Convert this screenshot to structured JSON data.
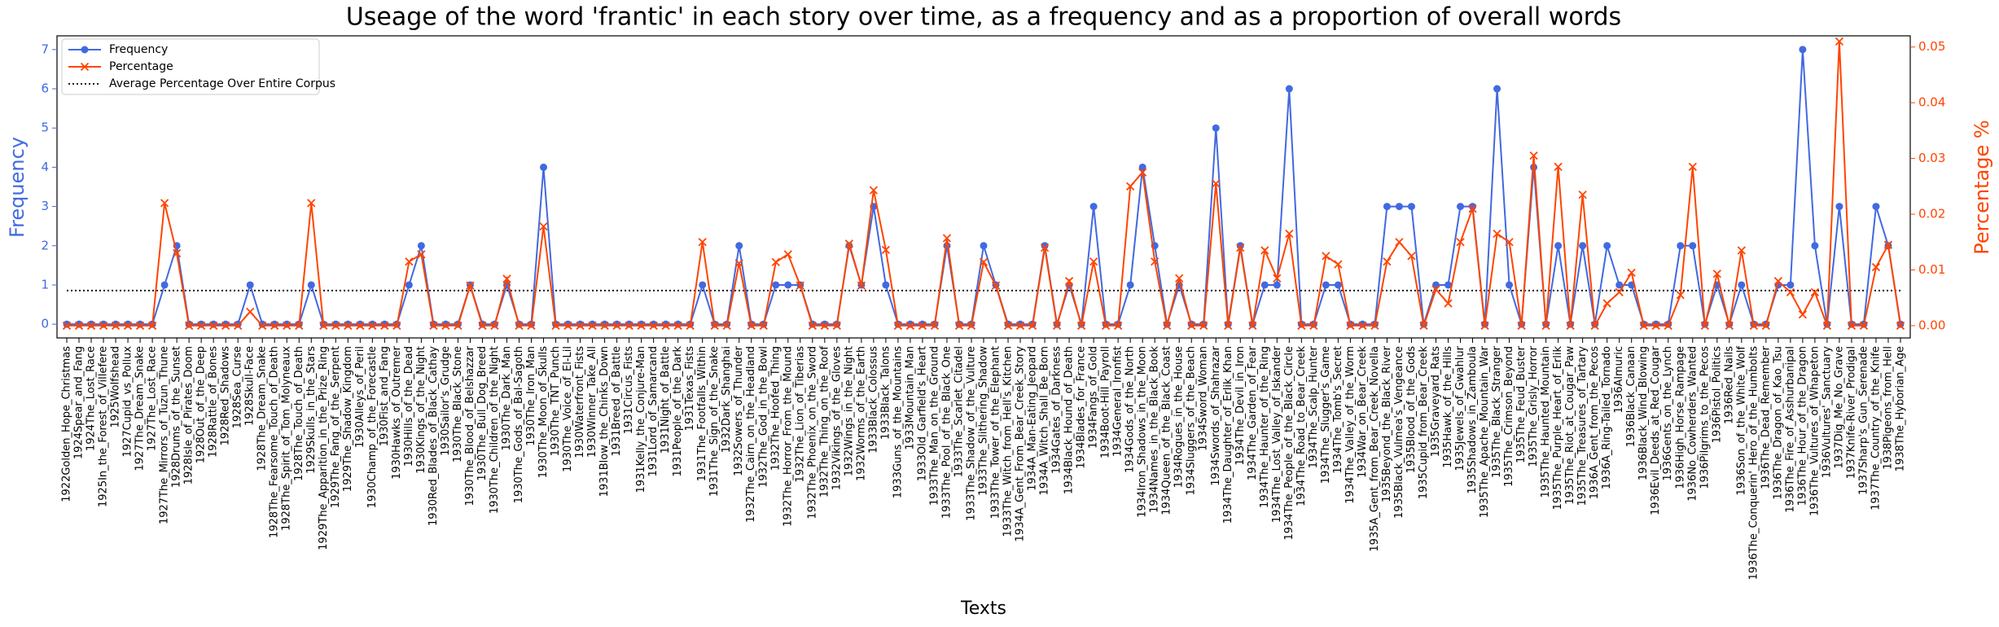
{
  "chart_data": {
    "type": "line",
    "title": "Useage of the word 'frantic' in each story over time, as a frequency and as a proportion of overall words",
    "xlabel": "Texts",
    "ylabel": "Frequency",
    "y2label": "Percentage %",
    "categories": [
      "1922Golden_Hope_Christmas",
      "1924Spear_and_Fang",
      "1924The_Lost_Race",
      "1925In_the_Forest_of_Villefere",
      "1925Wolfshead",
      "1927Cupid_vs_Pollux",
      "1927The_Dream_Snake",
      "1927The_Lost_Race",
      "1927The_Mirrors_of_Tuzun_Thune",
      "1928Drums_of_the_Sunset",
      "1928Isle_of_Pirates_Doom",
      "1928Out_of_the_Deep",
      "1928Rattle_of_Bones",
      "1928Red_Shadows",
      "1928Sea_Curse",
      "1928Skull-Face",
      "1928The_Dream_Snake",
      "1928The_Fearsome_Touch_of_Death",
      "1928The_Spirit_of_Tom_Molyneaux",
      "1928The_Touch_of_Death",
      "1929Skulls_in_the_Stars",
      "1929The_Apparition_in_the_Prize_Ring",
      "1929The_Fang_of_the_Serpent",
      "1929The_Shadow_Kingdom",
      "1930Alleys_of_Peril",
      "1930Champ_of_the_Forecastle",
      "1930Fist_and_Fang",
      "1930Hawks_of_Outremer",
      "1930Hills_of_the_Dead",
      "1930Kings_of_the_Night",
      "1930Red_Blades_of_Black_Cathay",
      "1930Sailor's_Grudge",
      "1930The_Black_Stone",
      "1930The_Blood_of_Belshazzar",
      "1930The_Bull_Dog_Breed",
      "1930The_Children_of_the_Night",
      "1930The_Dark_Man",
      "1930The_Gods_of_Bal-Sagoth",
      "1930The_Iron_Man",
      "1930The_Moon_of_Skulls",
      "1930The_TNT_Punch",
      "1930The_Voice_of_El-Lil",
      "1930Waterfront_Fists",
      "1930Winner_Take_All",
      "1931Blow_the_Chinks_Down",
      "1931Breed_of_Battle",
      "1931Circus_Fists",
      "1931Kelly_the_Conjure-Man",
      "1931Lord_of_Samarcand",
      "1931Night_of_Battle",
      "1931People_of_the_Dark",
      "1931Texas_Fists",
      "1931The_Footfalls_Within",
      "1931The_Sign_of_the_Snake",
      "1932Dark_Shanghai",
      "1932Sowers_of_Thunder",
      "1932The_Cairn_on_the_Headland",
      "1932The_God_in_the_Bowl",
      "1932The_Hoofed_Thing",
      "1932The_Horror_From_the_Mound",
      "1932The_Lion_of_Tiberias",
      "1932The_Phoenix_on_the_Sword",
      "1932The_Thing_on_the_Roof",
      "1932Vikings_of_the_Gloves",
      "1932Wings_in_the_Night",
      "1932Worms_of_the_Earth",
      "1933Black_Colossus",
      "1933Black_Talons",
      "1933Guns_of_the_Mountains",
      "1933Mountain_Man",
      "1933Old_Garfield's_Heart",
      "1933The_Man_on_the_Ground",
      "1933The_Pool_of_the_Black_One",
      "1933The_Scarlet_Citadel",
      "1933The_Shadow_of_the_Vulture",
      "1933The_Slithering_Shadow",
      "1933The_Tower_of_the_Elephant",
      "1933The_Witch_from_Hell's_Kitchen",
      "1934A_Gent_From_Bear_Creek_Story",
      "1934A_Man-Eating_Jeopard",
      "1934A_Witch_Shall_Be_Born",
      "1934Gates_of_Darkness",
      "1934Black_Hound_of_Death",
      "1934Blades_for_France",
      "1934Fangs_of_Gold",
      "1934Boot-Hill_Payroll",
      "1934General_Ironfist",
      "1934Gods_of_the_North",
      "1934Iron_Shadows_in_the_Moon",
      "1934Names_in_the_Black_Book",
      "1934Queen_of_the_Black_Coast",
      "1934Rogues_in_the_House",
      "1934Sluggers_of_the_Beach",
      "1934Sword_Woman",
      "1934Swords_of_Shahrazar",
      "1934The_Daughter_of_Erlik_Khan",
      "1934The_Devil_in_Iron",
      "1934The_Garden_of_Fear",
      "1934The_Haunter_of_the_Ring",
      "1934The_Lost_Valley_of_Iskander",
      "1934The_People_of_the_Black_Circle",
      "1934The_Road_to_Bear_Creek",
      "1934The_Scalp_Hunter",
      "1934The_Slugger's_Game",
      "1934The_Tomb's_Secret",
      "1934The_Valley_of_the_Worm",
      "1934War_on_Bear_Creek",
      "1935A_Gent_from_Bear_Creek_Novella",
      "1935Beyond_the_Black_River",
      "1935Black_Vulmea's_Vengeance",
      "1935Blood_of_the_Gods",
      "1935Cupid_from_Bear_Creek",
      "1935Graveyard_Rats",
      "1935Hawk_of_the_Hills",
      "1935Jewels_of_Gwahlur",
      "1935Shadows_in_Zamboula",
      "1935The_Apache_Mountain_War",
      "1935The_Black_Stranger",
      "1935The_Crimson_Beyond",
      "1935The_Feud_Buster",
      "1935The_Grisly_Horror",
      "1935The_Haunted_Mountain",
      "1935The_Purple_Heart_of_Erlik",
      "1935The_Riot_at_Cougar_Paw",
      "1935The_Treasures_of_Tartary",
      "1936A_Gent_from_the_Pecos",
      "1936A_Ring-Tailed_Tornado",
      "1936Almuric",
      "1936Black_Canaan",
      "1936Black_Wind_Blowing",
      "1936Evil_Deeds_at_Red_Cougar",
      "1936Gents_on_the_Lynch",
      "1936High_Horse_Rampage",
      "1936No_Cowherders_Wanted",
      "1936Pilgrims_to_the_Pecos",
      "1936Pistol_Politics",
      "1936Red_Nails",
      "1936Son_of_the_White_Wolf",
      "1936The_Conquerin'_Hero_of_the_Humbolts",
      "1936The_Dead_Remember",
      "1936The_Dragon_of_Kao_Tsu",
      "1936The_Fire_of_Asshurbanipal",
      "1936The_Hour_of_the_Dragon",
      "1936The_Vultures_of_Whapeton",
      "1936Vultures'_Sanctuary",
      "1937Dig_Me_No_Grave",
      "1937Knife-River_Prodigal",
      "1937Sharp's_Gun_Serenade",
      "1937The_Country_of_the_Knife",
      "1938Pigeons_from_Hell",
      "1938The_Hyborian_Age"
    ],
    "series": [
      {
        "name": "Frequency",
        "color": "#4169e1",
        "axis": "y",
        "marker": "o",
        "values": [
          0,
          0,
          0,
          0,
          0,
          0,
          0,
          0,
          1,
          2,
          0,
          0,
          0,
          0,
          0,
          1,
          0,
          0,
          0,
          0,
          1,
          0,
          0,
          0,
          0,
          0,
          0,
          0,
          1,
          2,
          0,
          0,
          0,
          1,
          0,
          0,
          1,
          0,
          0,
          4,
          0,
          0,
          0,
          0,
          0,
          0,
          0,
          0,
          0,
          0,
          0,
          0,
          1,
          0,
          0,
          2,
          0,
          0,
          1,
          1,
          1,
          0,
          0,
          0,
          2,
          1,
          3,
          1,
          0,
          0,
          0,
          0,
          2,
          0,
          0,
          2,
          1,
          0,
          0,
          0,
          2,
          0,
          1,
          0,
          3,
          0,
          0,
          1,
          4,
          2,
          0,
          1,
          0,
          0,
          5,
          0,
          2,
          0,
          1,
          1,
          6,
          0,
          0,
          1,
          1,
          0,
          0,
          0,
          3,
          3,
          3,
          0,
          1,
          1,
          3,
          3,
          0,
          6,
          1,
          0,
          4,
          0,
          2,
          0,
          2,
          0,
          2,
          1,
          1,
          0,
          0,
          0,
          2,
          2,
          0,
          1,
          0,
          1,
          0,
          0,
          1,
          1,
          7,
          2,
          0,
          3,
          0,
          0,
          3,
          2,
          0
        ]
      },
      {
        "name": "Percentage",
        "color": "#ff4500",
        "axis": "y2",
        "marker": "x",
        "values": [
          0,
          0,
          0,
          0,
          0,
          0,
          0,
          0,
          0.022,
          0.013,
          0,
          0,
          0,
          0,
          0,
          0.0025,
          0,
          0,
          0,
          0,
          0.022,
          0,
          0,
          0,
          0,
          0,
          0,
          0,
          0.0115,
          0.0128,
          0,
          0,
          0,
          0.0072,
          0,
          0,
          0.0084,
          0,
          0,
          0.0178,
          0,
          0,
          0,
          0,
          0,
          0,
          0,
          0,
          0,
          0,
          0,
          0,
          0.015,
          0,
          0,
          0.0112,
          0,
          0,
          0.0114,
          0.0128,
          0.0072,
          0,
          0,
          0,
          0.0147,
          0.0072,
          0.0243,
          0.0136,
          0,
          0,
          0,
          0,
          0.0157,
          0,
          0,
          0.0114,
          0.0072,
          0,
          0,
          0,
          0.014,
          0,
          0.008,
          0,
          0.0115,
          0,
          0,
          0.025,
          0.0275,
          0.0115,
          0,
          0.0085,
          0,
          0,
          0.0255,
          0,
          0.014,
          0,
          0.0135,
          0.0085,
          0.0165,
          0,
          0,
          0.0125,
          0.011,
          0,
          0,
          0,
          0.0115,
          0.015,
          0.0125,
          0,
          0.0065,
          0.004,
          0.015,
          0.021,
          0,
          0.0165,
          0.015,
          0,
          0.0305,
          0,
          0.0285,
          0,
          0.0235,
          0,
          0.004,
          0.006,
          0.0095,
          0,
          0,
          0,
          0.0055,
          0.0285,
          0,
          0.0093,
          0,
          0.0135,
          0,
          0,
          0.008,
          0.006,
          0.002,
          0.006,
          0,
          0.051,
          0,
          0,
          0.0105,
          0.0145,
          0
        ]
      }
    ],
    "average": {
      "name": "Average Percentage Over Entire Corpus",
      "color": "#000000",
      "axis": "y2",
      "value": 0.0063
    },
    "xlim": [
      -0.8,
      150.8
    ],
    "ylim": [
      -0.35,
      7.35
    ],
    "yticks": [
      0,
      1,
      2,
      3,
      4,
      5,
      6,
      7
    ],
    "y2lim": [
      -0.0022,
      0.052
    ],
    "y2ticks": [
      {
        "value": 0,
        "label": "0.00"
      },
      {
        "value": 0.01,
        "label": "0.01"
      },
      {
        "value": 0.02,
        "label": "0.02"
      },
      {
        "value": 0.03,
        "label": "0.03"
      },
      {
        "value": 0.04,
        "label": "0.04"
      },
      {
        "value": 0.05,
        "label": "0.05"
      }
    ],
    "legend": "upper left",
    "grid": false
  }
}
